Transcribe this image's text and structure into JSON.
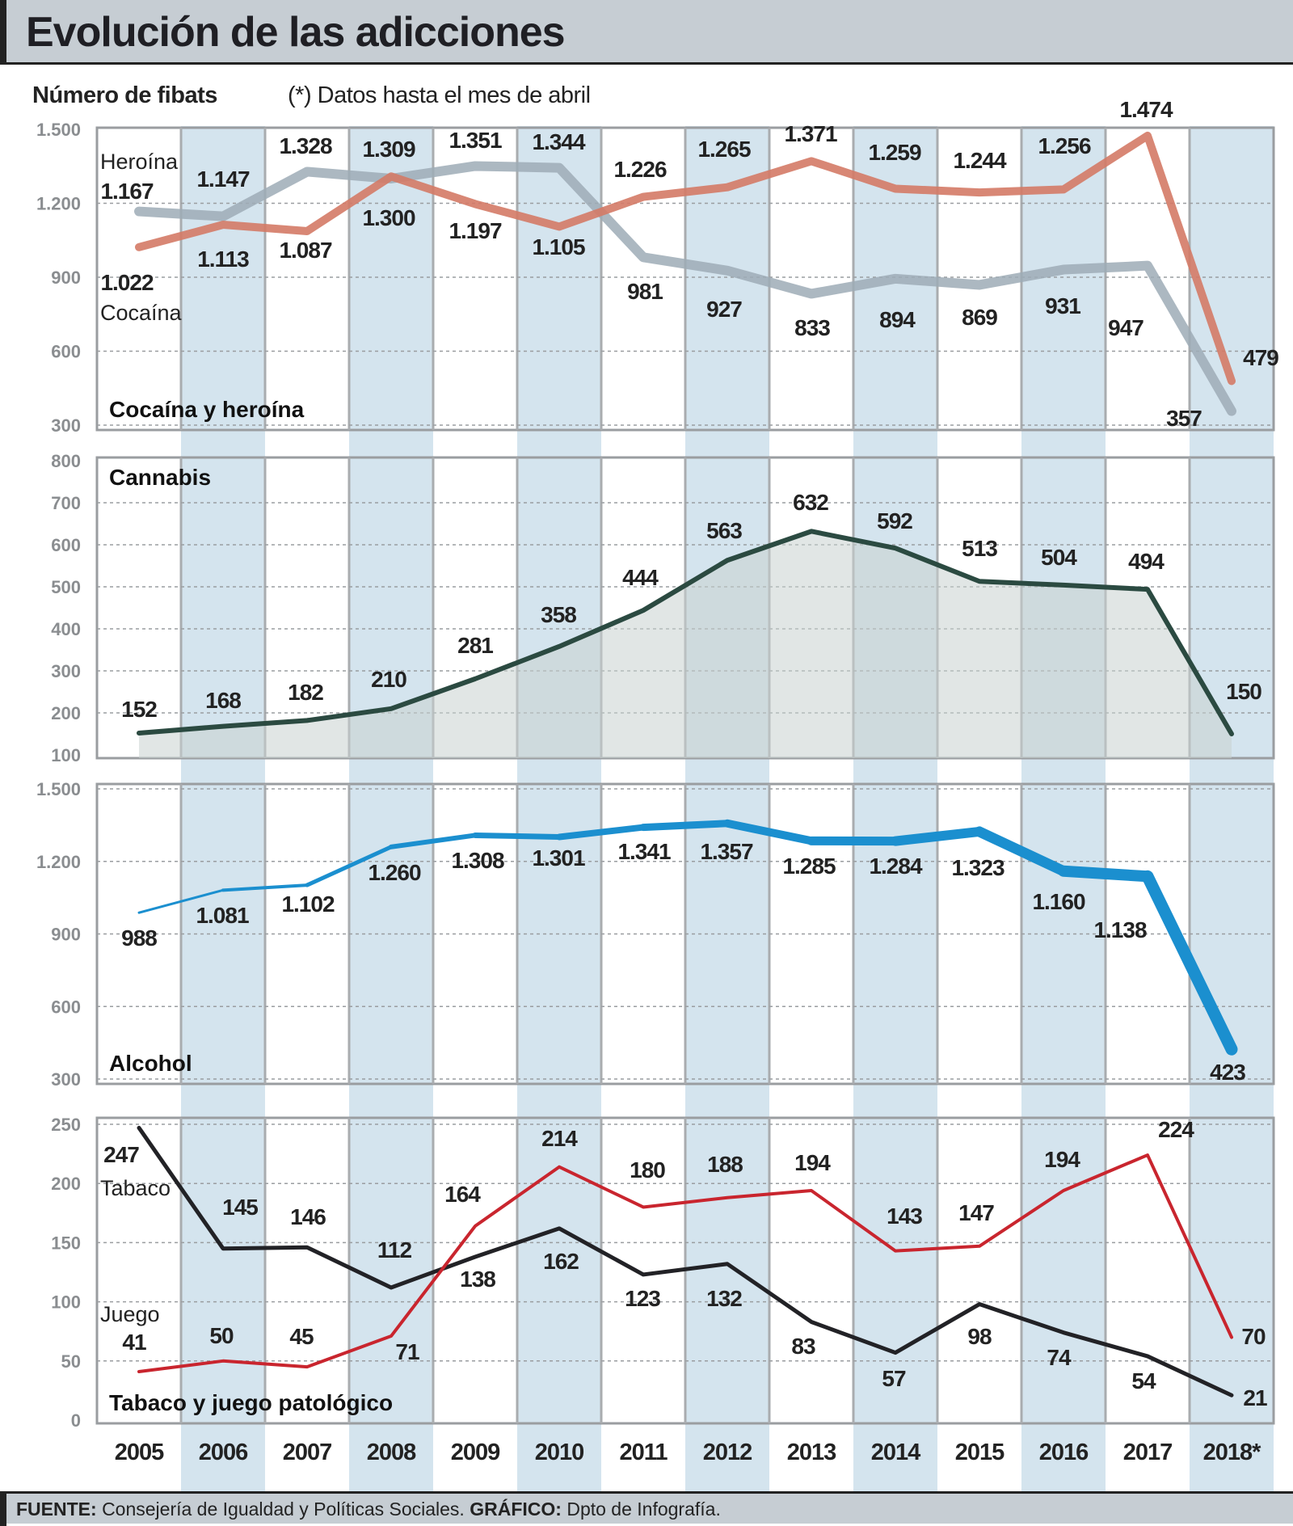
{
  "header": {
    "title": "Evolución de las adicciones",
    "unit_label": "Número de fibats",
    "note": "(*) Datos hasta el mes de abril"
  },
  "footer": {
    "source_label": "FUENTE:",
    "source": "Consejería de Igualdad y Políticas Sociales.",
    "graphic_label": "GRÁFICO:",
    "graphic": "Dpto de Infografía."
  },
  "colors": {
    "shade": "#d4e4ee",
    "cocaina": "#d47a66",
    "heroina": "#9eabb6",
    "cannabis": "#2b4a41",
    "alcohol": "#1b8fcf",
    "tabaco": "#222226",
    "juego": "#c9252e"
  },
  "chart_data": [
    {
      "type": "line",
      "title": "Cocaína y heroína",
      "categories": [
        "2005",
        "2006",
        "2007",
        "2008",
        "2009",
        "2010",
        "2011",
        "2012",
        "2013",
        "2014",
        "2015",
        "2016",
        "2017",
        "2018*"
      ],
      "ylim": [
        300,
        1500
      ],
      "yticks": [
        "300",
        "600",
        "900",
        "1.200",
        "1.500"
      ],
      "grid": true,
      "series": [
        {
          "name": "Heroína",
          "values": [
            1167,
            1147,
            1328,
            1300,
            1351,
            1344,
            981,
            927,
            833,
            894,
            869,
            931,
            947,
            357
          ]
        },
        {
          "name": "Cocaína",
          "values": [
            1022,
            1113,
            1087,
            1309,
            1197,
            1105,
            1226,
            1265,
            1371,
            1259,
            1244,
            1256,
            1474,
            479
          ]
        }
      ]
    },
    {
      "type": "area",
      "title": "Cannabis",
      "categories": [
        "2005",
        "2006",
        "2007",
        "2008",
        "2009",
        "2010",
        "2011",
        "2012",
        "2013",
        "2014",
        "2015",
        "2016",
        "2017",
        "2018*"
      ],
      "ylim": [
        100,
        800
      ],
      "yticks": [
        "100",
        "200",
        "300",
        "400",
        "500",
        "600",
        "700",
        "800"
      ],
      "grid": true,
      "series": [
        {
          "values": [
            152,
            168,
            182,
            210,
            281,
            358,
            444,
            563,
            632,
            592,
            513,
            504,
            494,
            150
          ]
        }
      ]
    },
    {
      "type": "line",
      "title": "Alcohol",
      "categories": [
        "2005",
        "2006",
        "2007",
        "2008",
        "2009",
        "2010",
        "2011",
        "2012",
        "2013",
        "2014",
        "2015",
        "2016",
        "2017",
        "2018*"
      ],
      "ylim": [
        300,
        1500
      ],
      "yticks": [
        "300",
        "600",
        "900",
        "1.200",
        "1.500"
      ],
      "grid": true,
      "series": [
        {
          "values": [
            988,
            1081,
            1102,
            1260,
            1308,
            1301,
            1341,
            1357,
            1285,
            1284,
            1323,
            1160,
            1138,
            423
          ]
        }
      ]
    },
    {
      "type": "line",
      "title": "Tabaco y juego patológico",
      "categories": [
        "2005",
        "2006",
        "2007",
        "2008",
        "2009",
        "2010",
        "2011",
        "2012",
        "2013",
        "2014",
        "2015",
        "2016",
        "2017",
        "2018*"
      ],
      "ylim": [
        0,
        250
      ],
      "yticks": [
        "0",
        "50",
        "100",
        "150",
        "200",
        "250"
      ],
      "grid": true,
      "series": [
        {
          "name": "Tabaco",
          "values": [
            247,
            145,
            146,
            112,
            138,
            162,
            123,
            132,
            83,
            57,
            98,
            74,
            54,
            21
          ]
        },
        {
          "name": "Juego",
          "values": [
            41,
            50,
            45,
            71,
            164,
            214,
            180,
            188,
            194,
            143,
            147,
            194,
            224,
            70
          ]
        }
      ]
    }
  ]
}
